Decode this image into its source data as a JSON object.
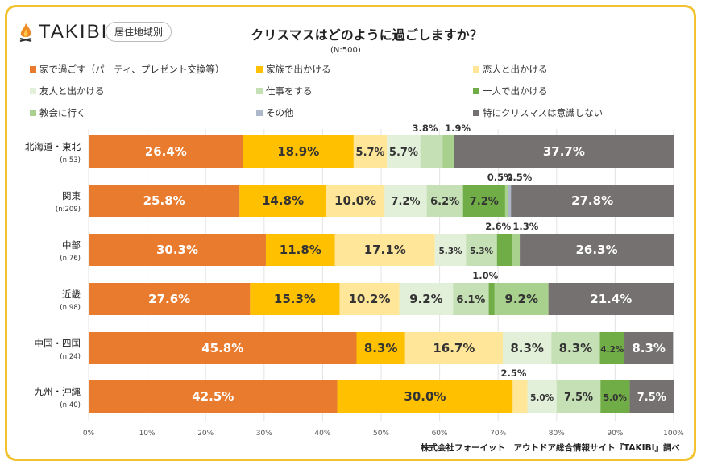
{
  "header": {
    "logo": "TAKIBI",
    "badge": "居住地域別",
    "title": "クリスマスはどのように過ごしますか？",
    "sample": "(N:500)"
  },
  "footer": "株式会社フォーイット　アウトドア総合情報サイト『TAKIBI』調べ",
  "chart_data": {
    "type": "bar",
    "orientation": "horizontal-stacked-100",
    "title": "クリスマスはどのように過ごしますか？",
    "xlim": [
      0,
      100
    ],
    "ticks": [
      "0%",
      "10%",
      "20%",
      "30%",
      "40%",
      "50%",
      "60%",
      "70%",
      "80%",
      "90%",
      "100%"
    ],
    "legend_position": "top",
    "series": [
      {
        "name": "家で過ごす（パーティ、プレゼント交換等）",
        "color": "#E97B2E"
      },
      {
        "name": "家族で出かける",
        "color": "#FFC000"
      },
      {
        "name": "恋人と出かける",
        "color": "#FFE699"
      },
      {
        "name": "友人と出かける",
        "color": "#E2F0D9"
      },
      {
        "name": "仕事をする",
        "color": "#C5E0B4"
      },
      {
        "name": "一人で出かける",
        "color": "#70AD47"
      },
      {
        "name": "教会に行く",
        "color": "#A9D18E"
      },
      {
        "name": "その他",
        "color": "#ADB9CA"
      },
      {
        "name": "特にクリスマスは意識しない",
        "color": "#767171"
      }
    ],
    "categories": [
      {
        "name": "北海道・東北",
        "n": "(n:53)",
        "values": [
          26.4,
          18.9,
          5.7,
          5.7,
          3.8,
          0,
          1.9,
          0,
          37.7
        ]
      },
      {
        "name": "関東",
        "n": "(n:209)",
        "values": [
          25.8,
          14.8,
          10.0,
          7.2,
          6.2,
          7.2,
          0.5,
          0.5,
          27.8
        ]
      },
      {
        "name": "中部",
        "n": "(n:76)",
        "values": [
          30.3,
          11.8,
          17.1,
          5.3,
          5.3,
          2.6,
          1.3,
          0,
          26.3
        ]
      },
      {
        "name": "近畿",
        "n": "(n:98)",
        "values": [
          27.6,
          15.3,
          10.2,
          9.2,
          6.1,
          1.0,
          9.2,
          0,
          21.4
        ]
      },
      {
        "name": "中国・四国",
        "n": "(n:24)",
        "values": [
          45.8,
          8.3,
          16.7,
          8.3,
          8.3,
          4.2,
          0,
          0,
          8.3
        ]
      },
      {
        "name": "九州・沖縄",
        "n": "(n:40)",
        "values": [
          42.5,
          30.0,
          2.5,
          5.0,
          7.5,
          5.0,
          0,
          0,
          7.5
        ]
      }
    ]
  }
}
